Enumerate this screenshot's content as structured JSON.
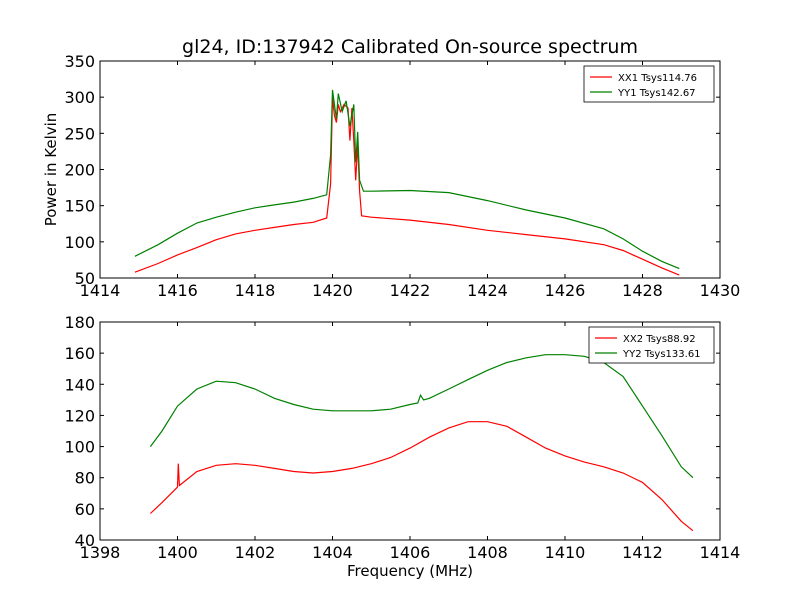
{
  "chart_data": [
    {
      "type": "line",
      "title": "gl24, ID:137942 Calibrated On-source spectrum",
      "xlabel": "",
      "ylabel": "Power in Kelvin",
      "xlim": [
        1414,
        1430
      ],
      "ylim": [
        50,
        350
      ],
      "xticks": [
        1414,
        1416,
        1418,
        1420,
        1422,
        1424,
        1426,
        1428,
        1430
      ],
      "yticks": [
        50,
        100,
        150,
        200,
        250,
        300,
        350
      ],
      "legend": "top-right",
      "series": [
        {
          "name": "XX1 Tsys114.76",
          "color": "#ff0000",
          "points": [
            [
              1414.9,
              58
            ],
            [
              1415.5,
              70
            ],
            [
              1416,
              82
            ],
            [
              1416.5,
              92
            ],
            [
              1417,
              103
            ],
            [
              1417.5,
              111
            ],
            [
              1418,
              116
            ],
            [
              1418.5,
              120
            ],
            [
              1419,
              124
            ],
            [
              1419.5,
              127
            ],
            [
              1419.85,
              133
            ],
            [
              1419.95,
              180
            ],
            [
              1420.0,
              300
            ],
            [
              1420.05,
              275
            ],
            [
              1420.1,
              265
            ],
            [
              1420.15,
              290
            ],
            [
              1420.2,
              280
            ],
            [
              1420.3,
              290
            ],
            [
              1420.4,
              285
            ],
            [
              1420.45,
              240
            ],
            [
              1420.5,
              285
            ],
            [
              1420.55,
              240
            ],
            [
              1420.6,
              185
            ],
            [
              1420.65,
              235
            ],
            [
              1420.7,
              170
            ],
            [
              1420.75,
              136
            ],
            [
              1421,
              134
            ],
            [
              1422,
              130
            ],
            [
              1423,
              124
            ],
            [
              1424,
              116
            ],
            [
              1425,
              110
            ],
            [
              1426,
              104
            ],
            [
              1427,
              96
            ],
            [
              1427.5,
              88
            ],
            [
              1428,
              76
            ],
            [
              1428.5,
              64
            ],
            [
              1428.95,
              54
            ]
          ]
        },
        {
          "name": "YY1 Tsys142.67",
          "color": "#008000",
          "points": [
            [
              1414.9,
              80
            ],
            [
              1415.5,
              96
            ],
            [
              1416,
              112
            ],
            [
              1416.5,
              126
            ],
            [
              1417,
              134
            ],
            [
              1417.5,
              141
            ],
            [
              1418,
              147
            ],
            [
              1418.5,
              151
            ],
            [
              1419,
              155
            ],
            [
              1419.5,
              160
            ],
            [
              1419.85,
              165
            ],
            [
              1419.95,
              220
            ],
            [
              1420.0,
              310
            ],
            [
              1420.1,
              270
            ],
            [
              1420.15,
              305
            ],
            [
              1420.25,
              280
            ],
            [
              1420.35,
              295
            ],
            [
              1420.45,
              260
            ],
            [
              1420.55,
              290
            ],
            [
              1420.6,
              210
            ],
            [
              1420.65,
              252
            ],
            [
              1420.7,
              185
            ],
            [
              1420.8,
              170
            ],
            [
              1421,
              170
            ],
            [
              1422,
              171
            ],
            [
              1423,
              168
            ],
            [
              1424,
              157
            ],
            [
              1425,
              144
            ],
            [
              1426,
              133
            ],
            [
              1427,
              118
            ],
            [
              1427.5,
              104
            ],
            [
              1428,
              87
            ],
            [
              1428.5,
              73
            ],
            [
              1428.95,
              63
            ]
          ]
        }
      ]
    },
    {
      "type": "line",
      "title": "",
      "xlabel": "Frequency (MHz)",
      "ylabel": "",
      "xlim": [
        1398,
        1414
      ],
      "ylim": [
        40,
        180
      ],
      "xticks": [
        1398,
        1400,
        1402,
        1404,
        1406,
        1408,
        1410,
        1412,
        1414
      ],
      "yticks": [
        40,
        60,
        80,
        100,
        120,
        140,
        160,
        180
      ],
      "legend": "top-right",
      "series": [
        {
          "name": "XX2 Tsys88.92",
          "color": "#ff0000",
          "points": [
            [
              1399.3,
              57
            ],
            [
              1399.6,
              64
            ],
            [
              1400,
              74
            ],
            [
              1400.02,
              89
            ],
            [
              1400.05,
              75
            ],
            [
              1400.5,
              84
            ],
            [
              1401,
              88
            ],
            [
              1401.5,
              89
            ],
            [
              1402,
              88
            ],
            [
              1402.5,
              86
            ],
            [
              1403,
              84
            ],
            [
              1403.5,
              83
            ],
            [
              1404,
              84
            ],
            [
              1404.5,
              86
            ],
            [
              1405,
              89
            ],
            [
              1405.5,
              93
            ],
            [
              1406,
              99
            ],
            [
              1406.5,
              106
            ],
            [
              1407,
              112
            ],
            [
              1407.5,
              116
            ],
            [
              1408,
              116
            ],
            [
              1408.5,
              113
            ],
            [
              1409,
              106
            ],
            [
              1409.5,
              99
            ],
            [
              1410,
              94
            ],
            [
              1410.5,
              90
            ],
            [
              1411,
              87
            ],
            [
              1411.5,
              83
            ],
            [
              1412,
              77
            ],
            [
              1412.5,
              66
            ],
            [
              1413,
              52
            ],
            [
              1413.3,
              46
            ]
          ]
        },
        {
          "name": "YY2 Tsys133.61",
          "color": "#008000",
          "points": [
            [
              1399.3,
              100
            ],
            [
              1399.6,
              110
            ],
            [
              1400,
              126
            ],
            [
              1400.5,
              137
            ],
            [
              1401,
              142
            ],
            [
              1401.5,
              141
            ],
            [
              1402,
              137
            ],
            [
              1402.5,
              131
            ],
            [
              1403,
              127
            ],
            [
              1403.5,
              124
            ],
            [
              1404,
              123
            ],
            [
              1404.5,
              123
            ],
            [
              1405,
              123
            ],
            [
              1405.5,
              124
            ],
            [
              1406,
              127
            ],
            [
              1406.2,
              128
            ],
            [
              1406.27,
              133
            ],
            [
              1406.35,
              130
            ],
            [
              1406.5,
              131
            ],
            [
              1407,
              137
            ],
            [
              1407.5,
              143
            ],
            [
              1408,
              149
            ],
            [
              1408.5,
              154
            ],
            [
              1409,
              157
            ],
            [
              1409.5,
              159
            ],
            [
              1410,
              159
            ],
            [
              1410.5,
              158
            ],
            [
              1411,
              154
            ],
            [
              1411.5,
              145
            ],
            [
              1412,
              126
            ],
            [
              1412.5,
              107
            ],
            [
              1413,
              87
            ],
            [
              1413.3,
              80
            ]
          ]
        }
      ]
    }
  ]
}
